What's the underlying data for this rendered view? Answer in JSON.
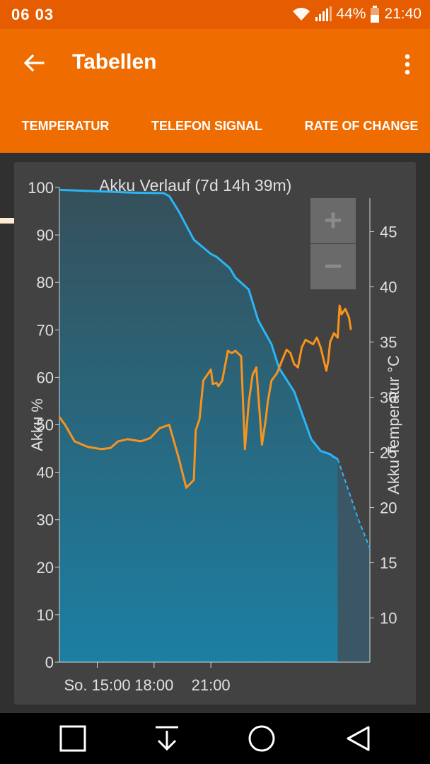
{
  "status_bar": {
    "time_left": "06 03",
    "battery_percent": "44%",
    "clock": "21:40"
  },
  "app_bar": {
    "title": "Tabellen",
    "back_icon": "arrow-back-icon",
    "menu_icon": "more-vert-icon"
  },
  "tabs": [
    {
      "label": "TEMPERATUR",
      "selected": true
    },
    {
      "label": "TELEFON SIGNAL",
      "selected": false
    },
    {
      "label": "RATE OF CHANGE",
      "selected": false
    }
  ],
  "colors": {
    "accent": "#ef6c00",
    "status_bar": "#e65c00",
    "battery_line": "#29b6f6",
    "temp_line": "#f7931e",
    "area_fill": "#1c7fa3"
  },
  "zoom": {
    "in_label": "+",
    "out_label": "−"
  },
  "chart_data": {
    "type": "line",
    "title": "Akku Verlauf (7d 14h 39m)",
    "ylabel_left": "Akku %",
    "ylabel_right": "Akku Temperatur °C",
    "x_tick_labels": [
      "So. 15:00",
      "18:00",
      "21:00"
    ],
    "y_left_ticks": [
      "0",
      "10",
      "20",
      "30",
      "40",
      "50",
      "60",
      "70",
      "80",
      "90",
      "100"
    ],
    "y_right_ticks": [
      "10",
      "15",
      "20",
      "25",
      "30",
      "35",
      "40",
      "45"
    ],
    "ylim_left": [
      0,
      100
    ],
    "ylim_right": [
      6,
      49
    ],
    "x_unit": "hours since So. 13:00",
    "grid": false,
    "legend": "none",
    "series": [
      {
        "name": "Akku %",
        "axis": "left",
        "color": "#29b6f6",
        "x": [
          0,
          2,
          4,
          5.5,
          5.8,
          6.3,
          6.7,
          7.1,
          7.7,
          8,
          8.3,
          9,
          9.3,
          10,
          10.5,
          11.2,
          11.6,
          12.4,
          13.3,
          13.8,
          14.3,
          14.5,
          14.7
        ],
        "y": [
          99.5,
          99.2,
          98.9,
          98.8,
          98.2,
          95,
          92,
          89,
          87,
          86,
          85.4,
          83,
          81,
          78.5,
          72,
          67,
          62,
          57,
          47,
          44.5,
          43.8,
          43.2,
          42.8
        ]
      },
      {
        "name": "Akku % (Prognose)",
        "axis": "left",
        "color": "#29b6f6",
        "dashed": true,
        "x": [
          14.7,
          15.2,
          15.8,
          16.4
        ],
        "y": [
          42.8,
          37,
          30,
          24
        ]
      },
      {
        "name": "Akku Temperatur",
        "axis": "right",
        "color": "#f7931e",
        "x": [
          0,
          0.3,
          0.8,
          1.5,
          2.2,
          2.7,
          3.1,
          3.6,
          4.3,
          4.8,
          5.3,
          5.8,
          6.3,
          6.7,
          7.1,
          7.2,
          7.4,
          7.6,
          8,
          8.1,
          8.3,
          8.4,
          8.6,
          8.9,
          9.1,
          9.3,
          9.6,
          9.8,
          10,
          10.2,
          10.4,
          10.7,
          10.9,
          11,
          11.2,
          11.5,
          11.8,
          12,
          12.2,
          12.4,
          12.6,
          12.8,
          13,
          13.2,
          13.4,
          13.6,
          13.8,
          14.1,
          14.2,
          14.3,
          14.5,
          14.7,
          14.8,
          14.9,
          15.1,
          15.3,
          15.4
        ],
        "y": [
          28.2,
          27.5,
          26,
          25.5,
          25.3,
          25.4,
          26,
          26.2,
          26.0,
          26.3,
          27.2,
          27.5,
          24.5,
          21.8,
          22.5,
          27,
          28,
          31.5,
          32.5,
          31.2,
          31.3,
          31,
          31.5,
          34.2,
          34.0,
          34.2,
          33.7,
          25.3,
          29.5,
          32,
          32.7,
          25.7,
          28,
          29.5,
          31.5,
          32.2,
          33.5,
          34.3,
          34,
          33,
          32.7,
          34.5,
          35.2,
          35,
          34.8,
          35.4,
          34.5,
          32.4,
          33.3,
          35,
          35.8,
          35.4,
          38.3,
          37.5,
          38,
          37.2,
          36.1
        ]
      }
    ]
  }
}
